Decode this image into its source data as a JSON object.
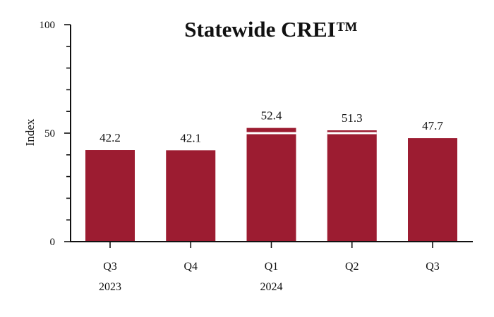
{
  "chart_data": {
    "type": "bar",
    "title": "Statewide CREI™",
    "xlabel": "",
    "ylabel": "Index",
    "ylim": [
      0,
      100
    ],
    "y_ticks": [
      0,
      50,
      100
    ],
    "categories": [
      "Q3",
      "Q4",
      "Q1",
      "Q2",
      "Q3"
    ],
    "groups": [
      {
        "label": "2023",
        "category_index": 0
      },
      {
        "label": "2024",
        "category_index": 2
      }
    ],
    "values": [
      42.2,
      42.1,
      52.4,
      51.3,
      47.7
    ],
    "value_labels": [
      "42.2",
      "42.1",
      "52.4",
      "51.3",
      "47.7"
    ],
    "bar_color": "#9c1c31",
    "reference_line_value": 50,
    "reference_line_color": "#ffffff",
    "grid": false,
    "legend": "none"
  }
}
